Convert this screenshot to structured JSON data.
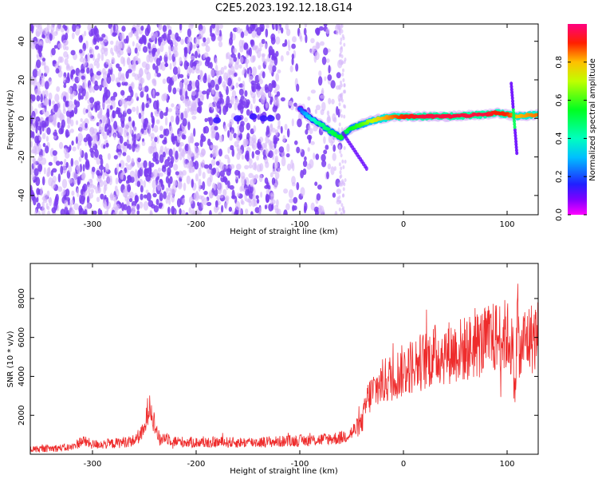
{
  "title": "C2E5.2023.192.12.18.G14",
  "colors": {
    "snr_line": "#ee2c2c",
    "noise_dots": "#7a3cf0",
    "noise_light": "#d6b8fa",
    "background": "#ffffff",
    "axis": "#000000"
  },
  "chart_data": [
    {
      "type": "heatmap",
      "name": "spectrogram",
      "xlabel": "Height of straight line (km)",
      "ylabel": "Frequency (Hz)",
      "xlim": [
        -360,
        130
      ],
      "ylim": [
        -50,
        49
      ],
      "x_ticks": [
        -300,
        -200,
        -100,
        0,
        100
      ],
      "y_ticks": [
        -40,
        -20,
        0,
        20,
        40
      ],
      "colorbar": {
        "label": "Normalized spectral amplitude",
        "range": [
          0,
          1
        ],
        "ticks": [
          0.0,
          0.2,
          0.4,
          0.6,
          0.8
        ],
        "colormap": "gist_rainbow_r"
      },
      "dominant_trace": {
        "description_points_x": [
          -100,
          -90,
          -80,
          -70,
          -60,
          -55,
          -50,
          -40,
          -30,
          -20,
          -10,
          0,
          20,
          40,
          60,
          80,
          90,
          100,
          110,
          130
        ],
        "description_points_y": [
          5,
          0,
          -3,
          -7,
          -10,
          -7,
          -5,
          -3,
          -1,
          0,
          1,
          1,
          1,
          1,
          1.5,
          2,
          3,
          2,
          1,
          2
        ],
        "amplitude": [
          0.2,
          0.35,
          0.45,
          0.5,
          0.55,
          0.5,
          0.55,
          0.6,
          0.7,
          0.8,
          0.85,
          0.9,
          0.95,
          0.95,
          0.95,
          0.95,
          0.9,
          0.9,
          0.8,
          0.85
        ]
      },
      "noise_region_x": [
        -360,
        -60
      ]
    },
    {
      "type": "line",
      "name": "snr",
      "xlabel": "Height of straight line (km)",
      "ylabel": "SNR (10 * v/v)",
      "xlim": [
        -360,
        130
      ],
      "ylim": [
        0,
        9800
      ],
      "x_ticks": [
        -300,
        -200,
        -100,
        0,
        100
      ],
      "y_ticks": [
        2000,
        4000,
        6000,
        8000
      ],
      "series": [
        {
          "x": [
            -360,
            -340,
            -320,
            -310,
            -300,
            -280,
            -260,
            -250,
            -245,
            -240,
            -235,
            -230,
            -220,
            -200,
            -180,
            -160,
            -140,
            -120,
            -100,
            -80,
            -60,
            -50,
            -40,
            -35,
            -30,
            -20,
            -10,
            0,
            10,
            20,
            30,
            40,
            50,
            60,
            70,
            80,
            90,
            100,
            105,
            108,
            110,
            112,
            115,
            120,
            130
          ],
          "y": [
            250,
            300,
            350,
            700,
            500,
            550,
            700,
            1200,
            2800,
            1500,
            700,
            900,
            650,
            600,
            620,
            600,
            620,
            650,
            700,
            750,
            850,
            1100,
            1600,
            2800,
            3200,
            3700,
            4000,
            4300,
            4600,
            4800,
            5100,
            5200,
            5300,
            5400,
            5600,
            5800,
            6000,
            6100,
            5500,
            3000,
            8000,
            4500,
            5800,
            5900,
            6100
          ]
        }
      ]
    }
  ]
}
